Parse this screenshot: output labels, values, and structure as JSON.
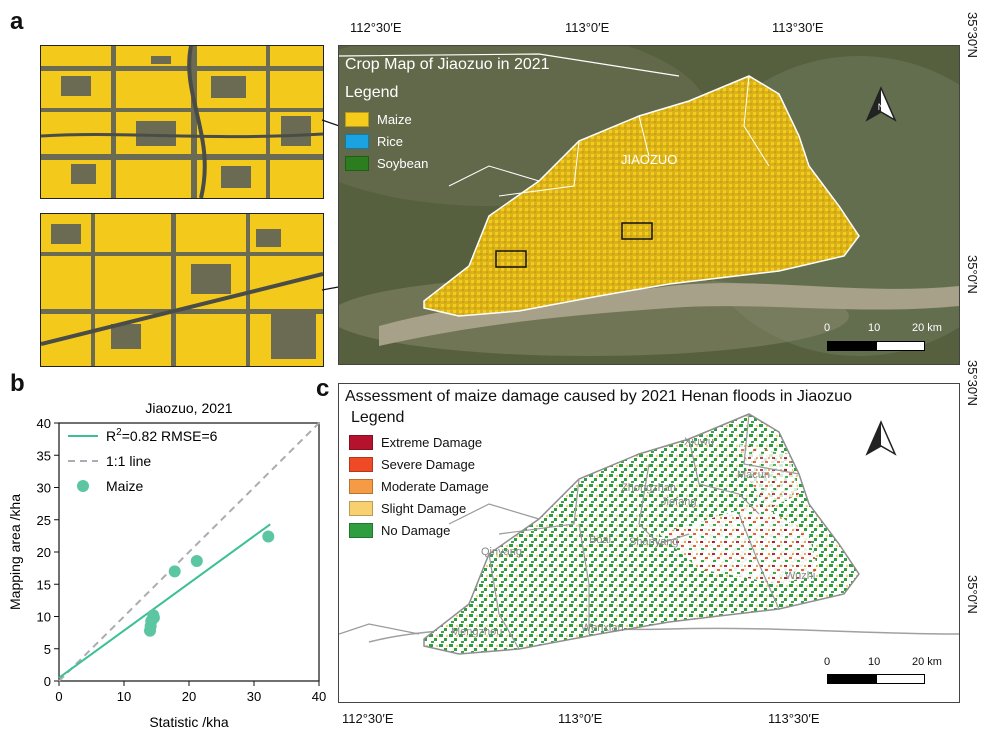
{
  "panels": {
    "a": "a",
    "b": "b",
    "c": "c"
  },
  "map_a": {
    "title": "Crop Map of Jiaozuo in 2021",
    "legend_title": "Legend",
    "legend": [
      {
        "label": "Maize",
        "color": "#f5cc1c"
      },
      {
        "label": "Rice",
        "color": "#1aa3e0"
      },
      {
        "label": "Soybean",
        "color": "#2b7d1f"
      }
    ],
    "place_label": "JIAOZUO",
    "scale_labels": [
      "0",
      "10",
      "20 km"
    ]
  },
  "map_c": {
    "title": "Assessment of maize damage caused by 2021 Henan floods in Jiaozuo",
    "legend_title": "Legend",
    "legend": [
      {
        "label": "Extreme Damage",
        "color": "#b5122d"
      },
      {
        "label": "Severe Damage",
        "color": "#ee4a26"
      },
      {
        "label": "Moderate Damage",
        "color": "#f59a45"
      },
      {
        "label": "Slight Damage",
        "color": "#f8d070"
      },
      {
        "label": "No Damage",
        "color": "#2f9e3e"
      }
    ],
    "districts": [
      "Xiuwu",
      "Zhongzhan",
      "Jiefang",
      "Macun",
      "Boai",
      "Shanyang",
      "Qinyang",
      "Wuzhi",
      "Wenxian",
      "Mengzhou"
    ],
    "scale_labels": [
      "0",
      "10",
      "20 km"
    ]
  },
  "coordinates": {
    "top_lon": [
      "112°30′E",
      "113°0′E",
      "113°30′E"
    ],
    "bottom_lon": [
      "112°30′E",
      "113°0′E",
      "113°30′E"
    ],
    "right_lat_a": [
      "35°30′N",
      "35°0′N"
    ],
    "right_lat_c": [
      "35°30′N",
      "35°0′N"
    ]
  },
  "chart_data": {
    "type": "scatter",
    "title": "Jiaozuo, 2021",
    "xlabel": "Statistic /kha",
    "ylabel": "Mapping area /kha",
    "xlim": [
      0,
      40
    ],
    "ylim": [
      0,
      40
    ],
    "xticks": [
      0,
      10,
      20,
      30,
      40
    ],
    "yticks": [
      0,
      5,
      10,
      15,
      20,
      25,
      30,
      35,
      40
    ],
    "series": [
      {
        "name": "Maize",
        "points": [
          [
            14.0,
            7.8
          ],
          [
            14.1,
            8.5
          ],
          [
            14.2,
            9.3
          ],
          [
            14.5,
            10.2
          ],
          [
            14.6,
            9.8
          ],
          [
            17.8,
            17.0
          ],
          [
            21.2,
            18.6
          ],
          [
            32.2,
            22.4
          ]
        ],
        "color": "#5cc6a3"
      }
    ],
    "fit_line": {
      "label": "R²=0.82 RMSE=6",
      "label_prefix": "R",
      "label_sup": "2",
      "label_rest": "=0.82 RMSE=6",
      "from": [
        0,
        0.5
      ],
      "to": [
        32.5,
        24.3
      ],
      "color": "#3bbf95"
    },
    "identity_line": {
      "label": "1:1 line",
      "color": "#a9adb3"
    },
    "legend_placement": "top-left"
  }
}
